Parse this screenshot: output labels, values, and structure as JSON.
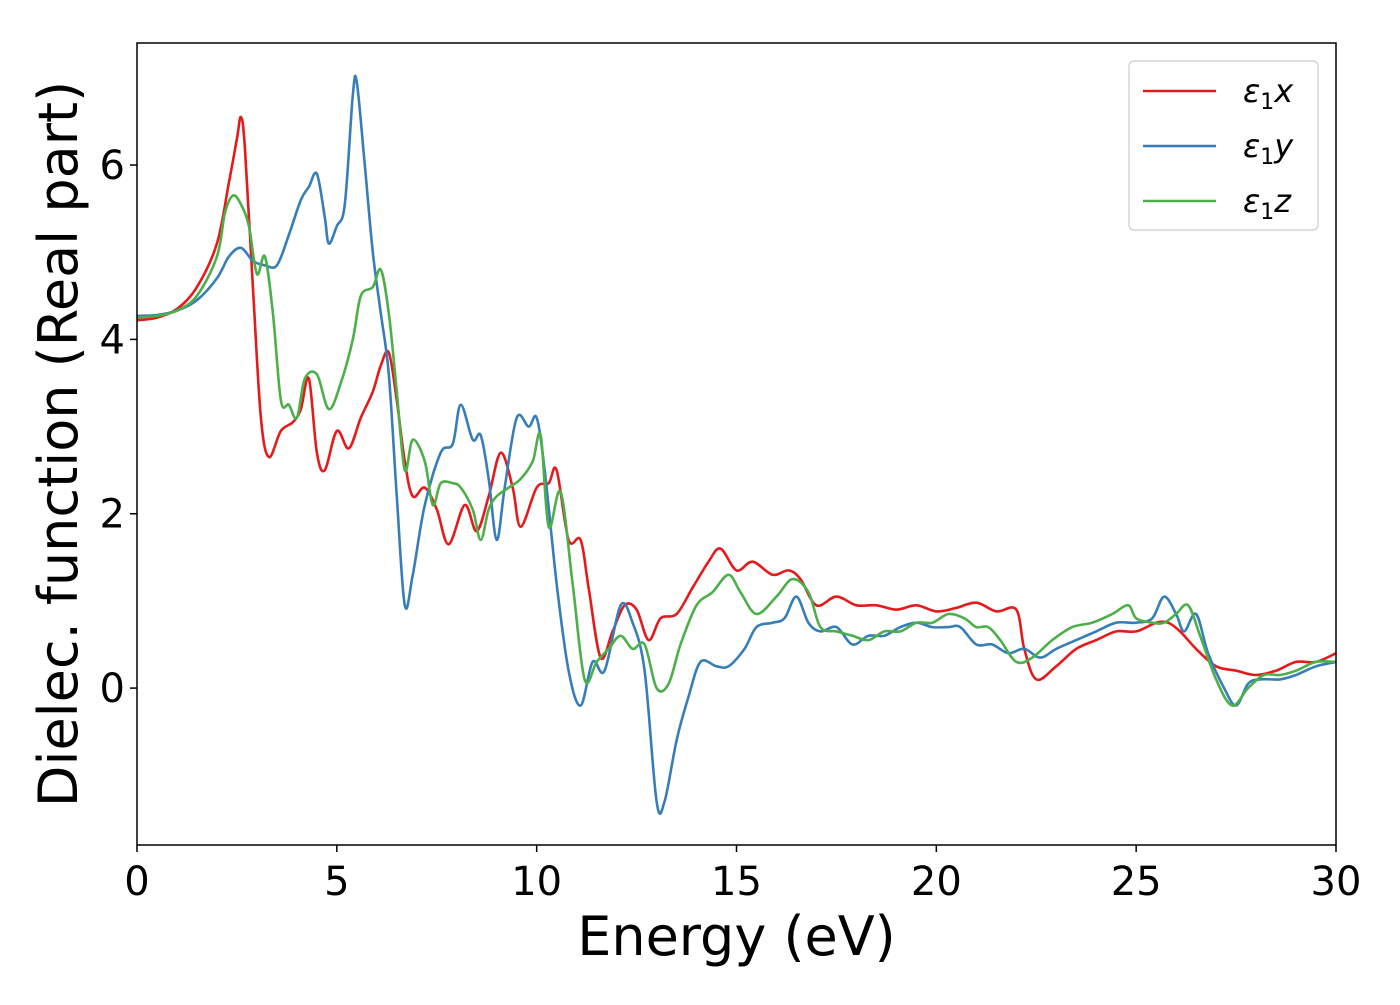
{
  "chart_data": {
    "type": "line",
    "title": "",
    "xlabel": "Energy (eV)",
    "ylabel": "Dielec. function (Real part)",
    "xlim": [
      0,
      30
    ],
    "ylim": [
      -1.8,
      7.4
    ],
    "xticks": [
      0,
      5,
      10,
      15,
      20,
      25,
      30
    ],
    "xtick_labels": [
      "0",
      "5",
      "10",
      "15",
      "20",
      "25",
      "30"
    ],
    "yticks": [
      0,
      2,
      4,
      6
    ],
    "ytick_labels": [
      "0",
      "2",
      "4",
      "6"
    ],
    "grid": false,
    "legend_position": "top-right",
    "series": [
      {
        "name": "ε₁x",
        "legend_label": "ε",
        "legend_sub": "1",
        "legend_suffix": "x",
        "color": "#e41a1c",
        "points": [
          [
            0,
            4.22
          ],
          [
            0.5,
            4.25
          ],
          [
            1,
            4.35
          ],
          [
            1.5,
            4.6
          ],
          [
            2,
            5.1
          ],
          [
            2.3,
            5.8
          ],
          [
            2.5,
            6.3
          ],
          [
            2.6,
            6.55
          ],
          [
            2.7,
            6.2
          ],
          [
            2.9,
            4.6
          ],
          [
            3.1,
            3.1
          ],
          [
            3.3,
            2.65
          ],
          [
            3.6,
            2.95
          ],
          [
            3.9,
            3.05
          ],
          [
            4.1,
            3.2
          ],
          [
            4.3,
            3.55
          ],
          [
            4.5,
            2.7
          ],
          [
            4.7,
            2.5
          ],
          [
            5.0,
            2.95
          ],
          [
            5.3,
            2.75
          ],
          [
            5.6,
            3.1
          ],
          [
            5.9,
            3.4
          ],
          [
            6.1,
            3.7
          ],
          [
            6.3,
            3.85
          ],
          [
            6.5,
            3.3
          ],
          [
            6.7,
            2.6
          ],
          [
            6.9,
            2.2
          ],
          [
            7.2,
            2.3
          ],
          [
            7.5,
            2.05
          ],
          [
            7.8,
            1.65
          ],
          [
            8.2,
            2.1
          ],
          [
            8.5,
            1.8
          ],
          [
            8.8,
            2.2
          ],
          [
            9.1,
            2.7
          ],
          [
            9.4,
            2.3
          ],
          [
            9.6,
            1.85
          ],
          [
            10.0,
            2.3
          ],
          [
            10.3,
            2.35
          ],
          [
            10.5,
            2.5
          ],
          [
            10.8,
            1.7
          ],
          [
            11.1,
            1.7
          ],
          [
            11.3,
            1.15
          ],
          [
            11.6,
            0.35
          ],
          [
            11.9,
            0.65
          ],
          [
            12.2,
            0.95
          ],
          [
            12.5,
            0.9
          ],
          [
            12.8,
            0.55
          ],
          [
            13.1,
            0.8
          ],
          [
            13.5,
            0.85
          ],
          [
            13.9,
            1.15
          ],
          [
            14.3,
            1.45
          ],
          [
            14.6,
            1.6
          ],
          [
            15.0,
            1.35
          ],
          [
            15.4,
            1.45
          ],
          [
            15.9,
            1.3
          ],
          [
            16.3,
            1.35
          ],
          [
            16.6,
            1.25
          ],
          [
            17.0,
            0.95
          ],
          [
            17.5,
            1.05
          ],
          [
            18.0,
            0.95
          ],
          [
            18.5,
            0.95
          ],
          [
            19.0,
            0.9
          ],
          [
            19.5,
            0.95
          ],
          [
            20.0,
            0.88
          ],
          [
            20.5,
            0.92
          ],
          [
            21.0,
            0.98
          ],
          [
            21.5,
            0.88
          ],
          [
            22.0,
            0.9
          ],
          [
            22.2,
            0.45
          ],
          [
            22.5,
            0.1
          ],
          [
            23.0,
            0.25
          ],
          [
            23.5,
            0.45
          ],
          [
            24.0,
            0.55
          ],
          [
            24.5,
            0.65
          ],
          [
            25.0,
            0.65
          ],
          [
            25.5,
            0.75
          ],
          [
            25.8,
            0.75
          ],
          [
            26.1,
            0.65
          ],
          [
            26.5,
            0.45
          ],
          [
            27.0,
            0.25
          ],
          [
            27.5,
            0.2
          ],
          [
            28.0,
            0.15
          ],
          [
            28.5,
            0.2
          ],
          [
            29.0,
            0.3
          ],
          [
            29.5,
            0.3
          ],
          [
            30.0,
            0.4
          ]
        ]
      },
      {
        "name": "ε₁y",
        "legend_label": "ε",
        "legend_sub": "1",
        "legend_suffix": "y",
        "color": "#377eb8",
        "points": [
          [
            0,
            4.27
          ],
          [
            0.5,
            4.28
          ],
          [
            1,
            4.33
          ],
          [
            1.5,
            4.45
          ],
          [
            2,
            4.7
          ],
          [
            2.3,
            4.95
          ],
          [
            2.6,
            5.05
          ],
          [
            2.9,
            4.9
          ],
          [
            3.2,
            4.85
          ],
          [
            3.5,
            4.85
          ],
          [
            3.8,
            5.2
          ],
          [
            4.1,
            5.6
          ],
          [
            4.3,
            5.75
          ],
          [
            4.5,
            5.9
          ],
          [
            4.7,
            5.4
          ],
          [
            4.8,
            5.1
          ],
          [
            5.0,
            5.3
          ],
          [
            5.2,
            5.55
          ],
          [
            5.4,
            6.8
          ],
          [
            5.5,
            6.95
          ],
          [
            5.7,
            6.0
          ],
          [
            5.9,
            5.0
          ],
          [
            6.1,
            4.3
          ],
          [
            6.3,
            3.6
          ],
          [
            6.5,
            2.2
          ],
          [
            6.7,
            0.95
          ],
          [
            6.9,
            1.3
          ],
          [
            7.2,
            2.1
          ],
          [
            7.6,
            2.7
          ],
          [
            7.9,
            2.8
          ],
          [
            8.1,
            3.25
          ],
          [
            8.4,
            2.85
          ],
          [
            8.6,
            2.9
          ],
          [
            8.8,
            2.4
          ],
          [
            9.0,
            1.7
          ],
          [
            9.2,
            2.3
          ],
          [
            9.5,
            3.1
          ],
          [
            9.8,
            3.0
          ],
          [
            10.0,
            3.1
          ],
          [
            10.2,
            2.5
          ],
          [
            10.5,
            1.2
          ],
          [
            10.8,
            0.2
          ],
          [
            11.1,
            -0.2
          ],
          [
            11.4,
            0.3
          ],
          [
            11.7,
            0.2
          ],
          [
            12.1,
            0.95
          ],
          [
            12.4,
            0.75
          ],
          [
            12.7,
            0.2
          ],
          [
            13.0,
            -1.3
          ],
          [
            13.2,
            -1.3
          ],
          [
            13.5,
            -0.6
          ],
          [
            13.8,
            -0.1
          ],
          [
            14.1,
            0.3
          ],
          [
            14.5,
            0.25
          ],
          [
            14.8,
            0.25
          ],
          [
            15.2,
            0.45
          ],
          [
            15.5,
            0.7
          ],
          [
            15.9,
            0.75
          ],
          [
            16.2,
            0.8
          ],
          [
            16.5,
            1.05
          ],
          [
            16.8,
            0.75
          ],
          [
            17.1,
            0.65
          ],
          [
            17.5,
            0.7
          ],
          [
            17.9,
            0.5
          ],
          [
            18.3,
            0.6
          ],
          [
            18.7,
            0.6
          ],
          [
            19.1,
            0.7
          ],
          [
            19.5,
            0.75
          ],
          [
            19.9,
            0.7
          ],
          [
            20.3,
            0.7
          ],
          [
            20.6,
            0.7
          ],
          [
            21.0,
            0.5
          ],
          [
            21.4,
            0.5
          ],
          [
            21.8,
            0.4
          ],
          [
            22.2,
            0.45
          ],
          [
            22.6,
            0.35
          ],
          [
            23.0,
            0.45
          ],
          [
            23.5,
            0.55
          ],
          [
            24.0,
            0.65
          ],
          [
            24.5,
            0.75
          ],
          [
            25.0,
            0.75
          ],
          [
            25.4,
            0.8
          ],
          [
            25.7,
            1.05
          ],
          [
            26.0,
            0.85
          ],
          [
            26.2,
            0.65
          ],
          [
            26.5,
            0.85
          ],
          [
            26.8,
            0.4
          ],
          [
            27.2,
            0.0
          ],
          [
            27.5,
            -0.2
          ],
          [
            27.8,
            0.05
          ],
          [
            28.1,
            0.1
          ],
          [
            28.6,
            0.1
          ],
          [
            29.0,
            0.15
          ],
          [
            29.5,
            0.25
          ],
          [
            30.0,
            0.3
          ]
        ]
      },
      {
        "name": "ε₁z",
        "legend_label": "ε",
        "legend_sub": "1",
        "legend_suffix": "z",
        "color": "#4daf4a",
        "points": [
          [
            0,
            4.25
          ],
          [
            0.5,
            4.27
          ],
          [
            1,
            4.33
          ],
          [
            1.5,
            4.5
          ],
          [
            2,
            4.95
          ],
          [
            2.2,
            5.45
          ],
          [
            2.4,
            5.65
          ],
          [
            2.6,
            5.55
          ],
          [
            2.8,
            5.3
          ],
          [
            3.0,
            4.75
          ],
          [
            3.2,
            4.95
          ],
          [
            3.4,
            4.3
          ],
          [
            3.6,
            3.3
          ],
          [
            3.8,
            3.25
          ],
          [
            4.0,
            3.1
          ],
          [
            4.2,
            3.55
          ],
          [
            4.5,
            3.6
          ],
          [
            4.8,
            3.2
          ],
          [
            5.1,
            3.5
          ],
          [
            5.4,
            4.0
          ],
          [
            5.6,
            4.5
          ],
          [
            5.9,
            4.6
          ],
          [
            6.1,
            4.8
          ],
          [
            6.3,
            4.3
          ],
          [
            6.5,
            3.4
          ],
          [
            6.7,
            2.5
          ],
          [
            6.9,
            2.85
          ],
          [
            7.2,
            2.6
          ],
          [
            7.4,
            2.1
          ],
          [
            7.6,
            2.35
          ],
          [
            7.9,
            2.35
          ],
          [
            8.1,
            2.3
          ],
          [
            8.4,
            2.05
          ],
          [
            8.6,
            1.7
          ],
          [
            8.8,
            2.05
          ],
          [
            9.0,
            2.2
          ],
          [
            9.3,
            2.3
          ],
          [
            9.6,
            2.4
          ],
          [
            9.9,
            2.6
          ],
          [
            10.1,
            2.9
          ],
          [
            10.3,
            1.85
          ],
          [
            10.6,
            2.25
          ],
          [
            10.9,
            1.2
          ],
          [
            11.2,
            0.1
          ],
          [
            11.5,
            0.3
          ],
          [
            11.8,
            0.45
          ],
          [
            12.1,
            0.6
          ],
          [
            12.4,
            0.45
          ],
          [
            12.7,
            0.5
          ],
          [
            13.0,
            0.0
          ],
          [
            13.3,
            0.05
          ],
          [
            13.6,
            0.5
          ],
          [
            14.0,
            0.95
          ],
          [
            14.4,
            1.1
          ],
          [
            14.8,
            1.3
          ],
          [
            15.1,
            1.1
          ],
          [
            15.5,
            0.85
          ],
          [
            16.0,
            1.05
          ],
          [
            16.4,
            1.25
          ],
          [
            16.8,
            1.1
          ],
          [
            17.1,
            0.7
          ],
          [
            17.5,
            0.65
          ],
          [
            17.9,
            0.6
          ],
          [
            18.3,
            0.55
          ],
          [
            18.7,
            0.65
          ],
          [
            19.1,
            0.65
          ],
          [
            19.5,
            0.75
          ],
          [
            19.9,
            0.75
          ],
          [
            20.3,
            0.85
          ],
          [
            20.7,
            0.8
          ],
          [
            21.0,
            0.7
          ],
          [
            21.3,
            0.7
          ],
          [
            21.6,
            0.55
          ],
          [
            22.0,
            0.3
          ],
          [
            22.4,
            0.35
          ],
          [
            22.9,
            0.55
          ],
          [
            23.4,
            0.7
          ],
          [
            23.9,
            0.75
          ],
          [
            24.4,
            0.85
          ],
          [
            24.8,
            0.95
          ],
          [
            25.0,
            0.8
          ],
          [
            25.4,
            0.75
          ],
          [
            25.7,
            0.75
          ],
          [
            26.0,
            0.85
          ],
          [
            26.3,
            0.95
          ],
          [
            26.6,
            0.6
          ],
          [
            27.0,
            0.1
          ],
          [
            27.4,
            -0.2
          ],
          [
            27.8,
            0.0
          ],
          [
            28.2,
            0.15
          ],
          [
            28.6,
            0.15
          ],
          [
            29.0,
            0.2
          ],
          [
            29.5,
            0.3
          ],
          [
            30.0,
            0.3
          ]
        ]
      }
    ]
  }
}
